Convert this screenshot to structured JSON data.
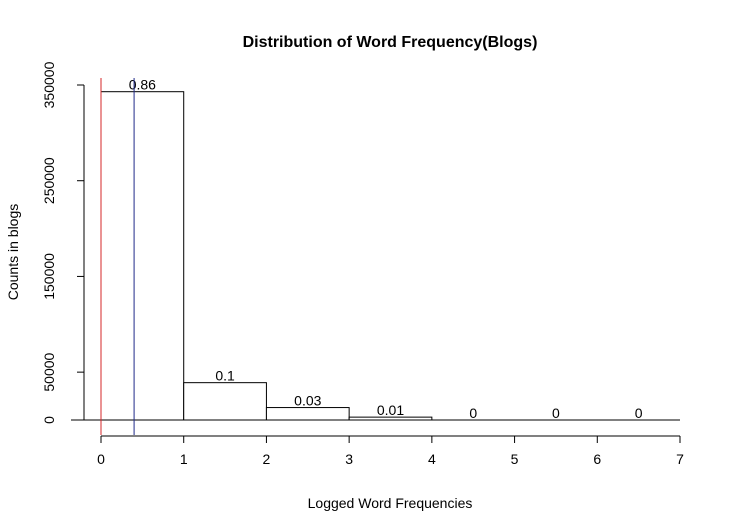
{
  "chart_data": {
    "type": "bar",
    "title": "Distribution of Word Frequency(Blogs)",
    "xlabel": "Logged Word Frequencies",
    "ylabel": "Counts in blogs",
    "bins": [
      {
        "start": 0,
        "end": 1,
        "count": 343000,
        "label": "0.86"
      },
      {
        "start": 1,
        "end": 2,
        "count": 39000,
        "label": "0.1"
      },
      {
        "start": 2,
        "end": 3,
        "count": 13000,
        "label": "0.03"
      },
      {
        "start": 3,
        "end": 4,
        "count": 3000,
        "label": "0.01"
      },
      {
        "start": 4,
        "end": 5,
        "count": 0,
        "label": "0"
      },
      {
        "start": 5,
        "end": 6,
        "count": 0,
        "label": "0"
      },
      {
        "start": 6,
        "end": 7,
        "count": 0,
        "label": "0"
      }
    ],
    "xlim": [
      0,
      7
    ],
    "ylim": [
      0,
      350000
    ],
    "x_ticks": [
      "0",
      "1",
      "2",
      "3",
      "4",
      "5",
      "6",
      "7"
    ],
    "y_ticks": [
      "0",
      "50000",
      "150000",
      "250000",
      "350000"
    ],
    "y_tick_values": [
      0,
      50000,
      150000,
      250000,
      350000
    ],
    "vlines": [
      {
        "x": 0.0,
        "color": "#d62728"
      },
      {
        "x": 0.4,
        "color": "#1f2a8a"
      }
    ],
    "grid": false,
    "legend": "none"
  }
}
